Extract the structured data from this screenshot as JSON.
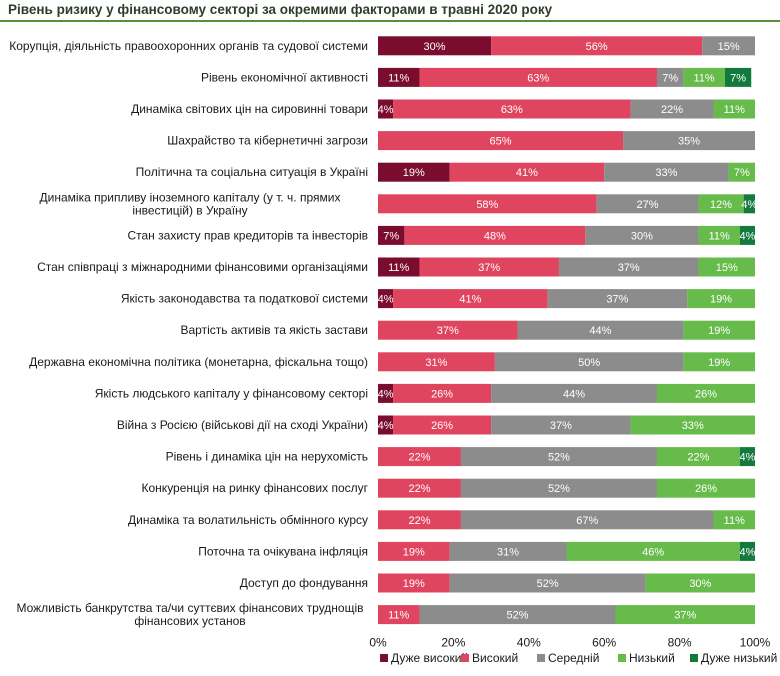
{
  "chart_data": {
    "type": "bar",
    "orientation": "horizontal",
    "stacked": "percent",
    "title": "Рівень ризику у фінансовому секторі за окремими факторами в травні 2020 року",
    "categories": [
      "Корупція, діяльність правоохоронних органів та судової системи",
      "Рівень економічної активності",
      "Динаміка світових цін на сировинні товари",
      "Шахрайство та кібернетичні загрози",
      "Політична та соціальна ситуація в Україні",
      "Динаміка припливу іноземного капіталу (у т. ч. прямих інвестицій) в Україну",
      "Стан захисту прав кредиторів та інвесторів",
      "Стан співпраці з міжнародними фінансовими організаціями",
      "Якість законодавства та податкової системи",
      "Вартість активів та якість застави",
      "Державна економічна політика (монетарна, фіскальна тощо)",
      "Якість людського капіталу у фінансовому секторі",
      "Війна з Росією (військові дії на сході України)",
      "Рівень і динаміка цін на нерухомість",
      "Конкуренція на ринку фінансових послуг",
      "Динаміка та волатильність обмінного курсу",
      "Поточна та очікувана інфляція",
      "Доступ до фондування",
      "Можливість банкрутства та/чи суттєвих фінансових труднощів фінансових установ"
    ],
    "series": [
      {
        "name": "Дуже високий",
        "color": "#7a0c2e",
        "values": [
          30,
          11,
          4,
          0,
          19,
          0,
          7,
          11,
          4,
          0,
          0,
          4,
          4,
          0,
          0,
          0,
          0,
          0,
          0
        ]
      },
      {
        "name": "Високий",
        "color": "#e0455f",
        "values": [
          56,
          63,
          63,
          65,
          41,
          58,
          48,
          37,
          41,
          37,
          31,
          26,
          26,
          22,
          22,
          22,
          19,
          19,
          11
        ]
      },
      {
        "name": "Середній",
        "color": "#8c8c8c",
        "values": [
          15,
          7,
          22,
          35,
          33,
          27,
          30,
          37,
          37,
          44,
          50,
          44,
          37,
          52,
          52,
          67,
          31,
          52,
          52
        ]
      },
      {
        "name": "Низький",
        "color": "#66bb4a",
        "values": [
          0,
          11,
          11,
          0,
          7,
          12,
          11,
          15,
          19,
          19,
          19,
          26,
          33,
          22,
          26,
          11,
          46,
          30,
          37
        ]
      },
      {
        "name": "Дуже низький",
        "color": "#137a3e",
        "values": [
          0,
          7,
          0,
          0,
          0,
          4,
          4,
          0,
          0,
          0,
          0,
          0,
          0,
          4,
          0,
          0,
          4,
          0,
          0
        ]
      }
    ],
    "xlim": [
      0,
      100
    ],
    "xticks": [
      "0%",
      "20%",
      "40%",
      "60%",
      "80%",
      "100%"
    ],
    "value_suffix": "%",
    "grid": false,
    "legend": "bottom"
  }
}
